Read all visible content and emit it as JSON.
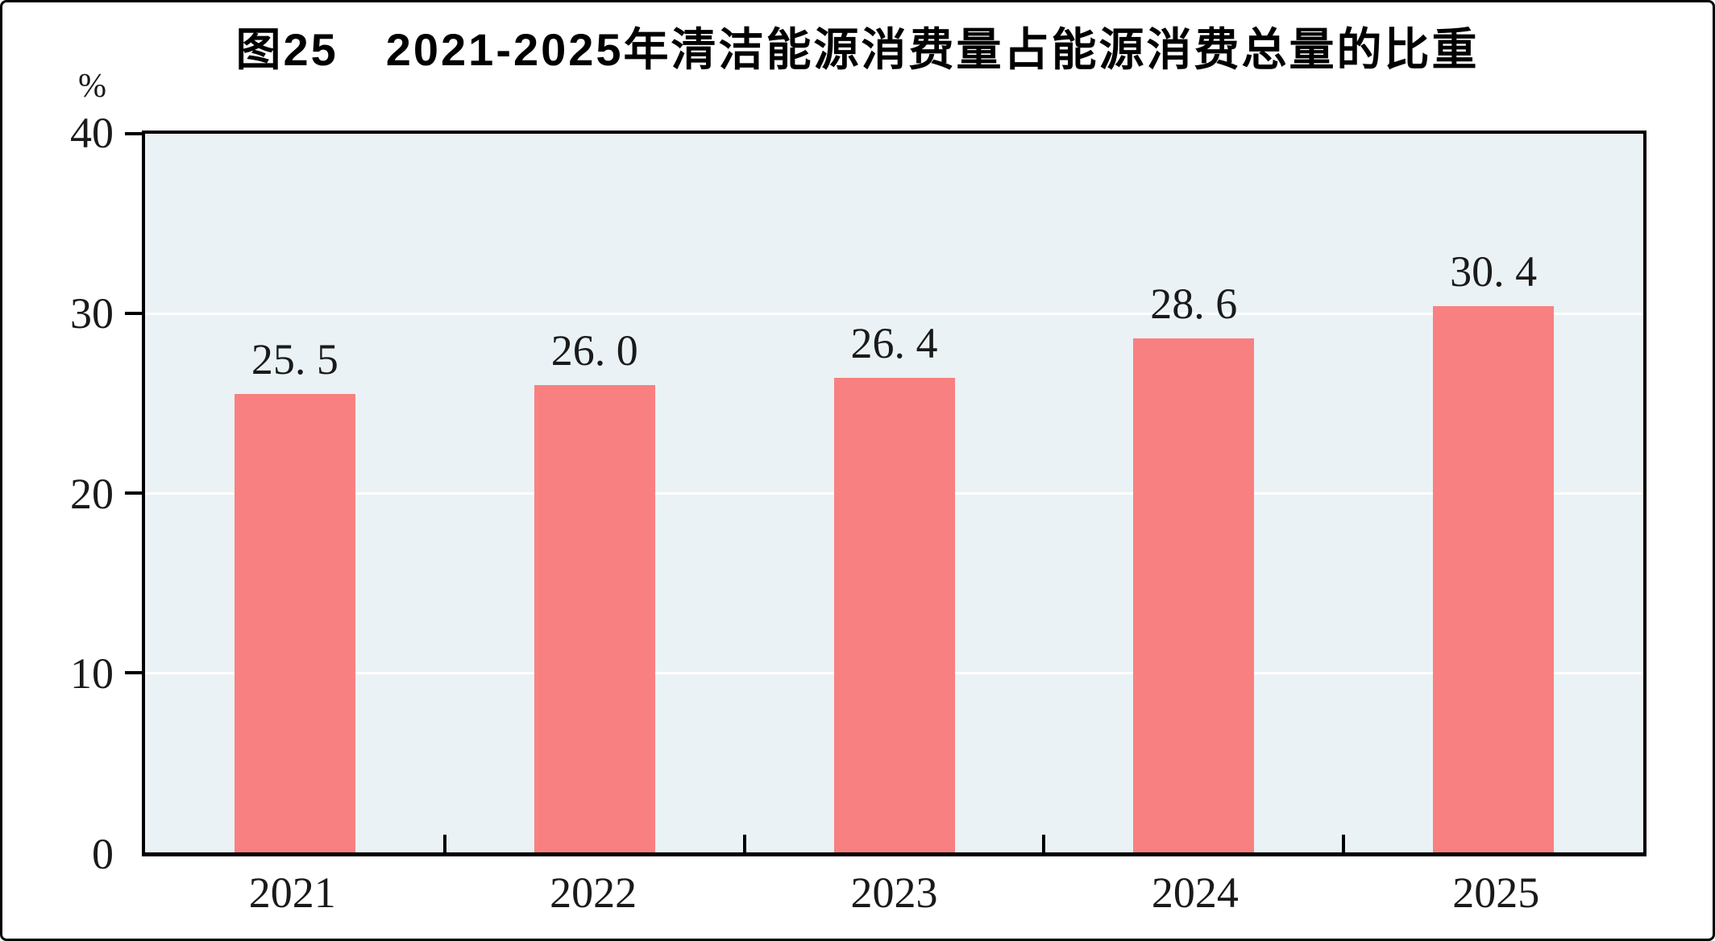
{
  "chart_data": {
    "type": "bar",
    "title": "图25　2021-2025年清洁能源消费量占能源消费总量的比重",
    "unit_label": "%",
    "categories": [
      "2021",
      "2022",
      "2023",
      "2024",
      "2025"
    ],
    "values": [
      25.5,
      26.0,
      26.4,
      28.6,
      30.4
    ],
    "value_labels": [
      "25. 5",
      "26. 0",
      "26. 4",
      "28. 6",
      "30. 4"
    ],
    "ylim": [
      0,
      40
    ],
    "yticks": [
      0,
      10,
      20,
      30,
      40
    ],
    "gridlines": [
      10,
      20,
      30
    ],
    "legend": "none",
    "grid": "horizontal",
    "bar_color": "#F98080",
    "plot_background": "#EAF2F5",
    "axis_color": "#000000",
    "gridline_color": "#FFFFFF",
    "text_color": "#1a1a1a"
  }
}
